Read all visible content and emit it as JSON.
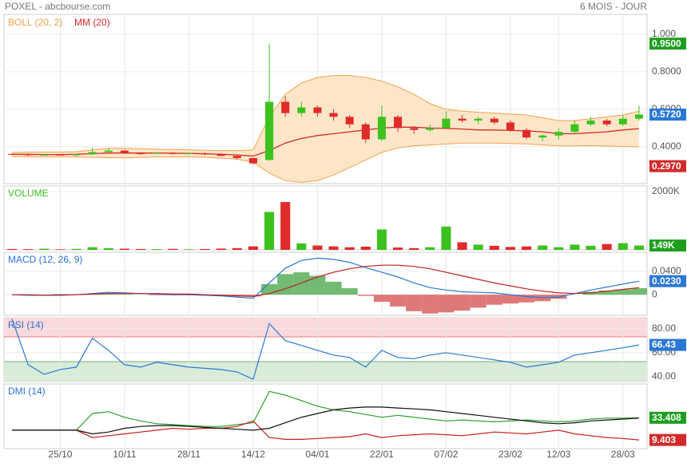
{
  "header": {
    "title": "POXEL - abcbourse.com",
    "period": "6 MOIS - JOUR"
  },
  "chart_data": [
    {
      "type": "candlestick",
      "legend": [
        {
          "name": "BOLL (20, 2)",
          "color": "#f0a24a"
        },
        {
          "name": "MM (20)",
          "color": "#d42a2a"
        }
      ],
      "up_color": "#3cc21e",
      "down_color": "#e02b2b",
      "open": [
        0.362,
        0.36,
        0.356,
        0.358,
        0.355,
        0.36,
        0.372,
        0.38,
        0.366,
        0.364,
        0.368,
        0.362,
        0.366,
        0.36,
        0.352,
        0.34,
        0.33,
        0.64,
        0.58,
        0.61,
        0.58,
        0.56,
        0.52,
        0.44,
        0.56,
        0.5,
        0.49,
        0.5,
        0.55,
        0.54,
        0.55,
        0.53,
        0.49,
        0.45,
        0.46,
        0.48,
        0.52,
        0.54,
        0.52,
        0.55
      ],
      "high": [
        0.366,
        0.364,
        0.362,
        0.362,
        0.364,
        0.396,
        0.392,
        0.384,
        0.372,
        0.37,
        0.372,
        0.37,
        0.37,
        0.364,
        0.356,
        0.342,
        0.95,
        0.67,
        0.64,
        0.62,
        0.6,
        0.57,
        0.53,
        0.62,
        0.57,
        0.51,
        0.52,
        0.59,
        0.57,
        0.56,
        0.56,
        0.54,
        0.5,
        0.47,
        0.5,
        0.54,
        0.56,
        0.55,
        0.57,
        0.62
      ],
      "low": [
        0.356,
        0.352,
        0.352,
        0.354,
        0.35,
        0.356,
        0.366,
        0.362,
        0.358,
        0.36,
        0.36,
        0.358,
        0.356,
        0.35,
        0.334,
        0.306,
        0.326,
        0.56,
        0.56,
        0.56,
        0.54,
        0.5,
        0.42,
        0.43,
        0.48,
        0.47,
        0.48,
        0.5,
        0.53,
        0.52,
        0.52,
        0.48,
        0.44,
        0.43,
        0.44,
        0.47,
        0.51,
        0.51,
        0.51,
        0.54
      ],
      "close": [
        0.36,
        0.356,
        0.358,
        0.355,
        0.36,
        0.372,
        0.38,
        0.366,
        0.364,
        0.368,
        0.362,
        0.366,
        0.36,
        0.352,
        0.34,
        0.312,
        0.64,
        0.58,
        0.61,
        0.58,
        0.56,
        0.52,
        0.44,
        0.56,
        0.5,
        0.49,
        0.5,
        0.55,
        0.54,
        0.55,
        0.53,
        0.49,
        0.45,
        0.46,
        0.48,
        0.52,
        0.54,
        0.52,
        0.55,
        0.572
      ],
      "bollinger": {
        "upper": [
          0.37,
          0.372,
          0.372,
          0.372,
          0.374,
          0.384,
          0.392,
          0.392,
          0.39,
          0.388,
          0.386,
          0.384,
          0.382,
          0.38,
          0.38,
          0.384,
          0.56,
          0.68,
          0.74,
          0.77,
          0.78,
          0.78,
          0.77,
          0.75,
          0.72,
          0.68,
          0.63,
          0.6,
          0.59,
          0.585,
          0.58,
          0.575,
          0.57,
          0.555,
          0.54,
          0.54,
          0.55,
          0.56,
          0.57,
          0.59
        ],
        "lower": [
          0.348,
          0.348,
          0.346,
          0.346,
          0.346,
          0.344,
          0.342,
          0.342,
          0.344,
          0.346,
          0.346,
          0.346,
          0.344,
          0.34,
          0.334,
          0.318,
          0.26,
          0.22,
          0.21,
          0.22,
          0.25,
          0.29,
          0.33,
          0.37,
          0.395,
          0.405,
          0.41,
          0.415,
          0.42,
          0.42,
          0.42,
          0.418,
          0.416,
          0.41,
          0.405,
          0.405,
          0.406,
          0.404,
          0.402,
          0.4
        ],
        "middle": [
          0.36,
          0.36,
          0.359,
          0.359,
          0.36,
          0.364,
          0.367,
          0.367,
          0.367,
          0.367,
          0.366,
          0.365,
          0.363,
          0.36,
          0.357,
          0.351,
          0.38,
          0.42,
          0.445,
          0.46,
          0.47,
          0.48,
          0.49,
          0.5,
          0.505,
          0.505,
          0.5,
          0.498,
          0.495,
          0.49,
          0.49,
          0.488,
          0.485,
          0.48,
          0.47,
          0.47,
          0.475,
          0.48,
          0.49,
          0.497
        ],
        "band_fill": "#fde6c8"
      },
      "ylim": [
        0.204,
        1.106
      ],
      "yticks": [
        {
          "value": 1.0,
          "label": "1.000"
        },
        {
          "value": 0.8,
          "label": "0.8000"
        },
        {
          "value": 0.6,
          "label": "0.6000"
        },
        {
          "value": 0.4,
          "label": "0.4000"
        }
      ],
      "badges": [
        {
          "value": 0.95,
          "label": "0.9500",
          "color": "#1e9e1e",
          "text_color": "#ffffff"
        },
        {
          "value": 0.572,
          "label": "0.5720",
          "color": "#2a78d6",
          "text_color": "#ffffff"
        },
        {
          "value": 0.297,
          "label": "0.2970",
          "color": "#d42a2a",
          "text_color": "#ffffff"
        }
      ]
    },
    {
      "type": "bar",
      "title": "VOLUME",
      "title_color": "#3cc21e",
      "values": [
        30000,
        25000,
        40000,
        20000,
        35000,
        90000,
        60000,
        40000,
        30000,
        25000,
        35000,
        20000,
        30000,
        45000,
        60000,
        120000,
        1300000,
        1640000,
        220000,
        150000,
        120000,
        90000,
        110000,
        700000,
        80000,
        60000,
        90000,
        800000,
        260000,
        180000,
        140000,
        100000,
        120000,
        150000,
        90000,
        180000,
        140000,
        200000,
        230000,
        149000
      ],
      "ylim": [
        0,
        2190000
      ],
      "yticks": [
        {
          "value": 2000000,
          "label": "2000K"
        }
      ],
      "badges": [
        {
          "value": 149000,
          "label": "149K",
          "color": "#1e9e1e",
          "text_color": "#ffffff"
        }
      ]
    },
    {
      "type": "macd",
      "title": "MACD (12, 26, 9)",
      "title_color": "#2a6fd6",
      "series": [
        {
          "color": "#2a78d6",
          "values": [
            0.0,
            -0.001,
            -0.001,
            0.0,
            0.0,
            0.002,
            0.004,
            0.003,
            0.002,
            0.001,
            0.0,
            0.0,
            -0.001,
            -0.002,
            -0.004,
            -0.006,
            0.02,
            0.045,
            0.058,
            0.062,
            0.06,
            0.055,
            0.046,
            0.038,
            0.03,
            0.02,
            0.012,
            0.008,
            0.005,
            0.004,
            0.003,
            0.0,
            -0.003,
            -0.005,
            -0.004,
            0.002,
            0.008,
            0.013,
            0.018,
            0.023
          ]
        },
        {
          "color": "#c02020",
          "values": [
            0.0,
            0.0,
            -0.001,
            -0.001,
            0.0,
            0.001,
            0.002,
            0.002,
            0.002,
            0.002,
            0.001,
            0.001,
            0.0,
            -0.001,
            -0.002,
            -0.003,
            0.002,
            0.01,
            0.02,
            0.03,
            0.038,
            0.044,
            0.048,
            0.05,
            0.05,
            0.048,
            0.044,
            0.038,
            0.032,
            0.026,
            0.02,
            0.015,
            0.01,
            0.006,
            0.003,
            0.002,
            0.003,
            0.006,
            0.009,
            0.012
          ]
        }
      ],
      "histogram": {
        "up_color": "#5aae5a",
        "down_color": "#d96060",
        "values": [
          0.0,
          -0.001,
          0.0,
          0.001,
          0.0,
          0.001,
          0.002,
          0.001,
          0.0,
          -0.001,
          -0.001,
          -0.001,
          -0.001,
          -0.001,
          -0.002,
          -0.003,
          0.018,
          0.035,
          0.038,
          0.032,
          0.022,
          0.011,
          -0.002,
          -0.012,
          -0.02,
          -0.028,
          -0.032,
          -0.03,
          -0.027,
          -0.022,
          -0.017,
          -0.015,
          -0.013,
          -0.011,
          -0.007,
          0.0,
          0.005,
          0.007,
          0.009,
          0.011
        ]
      },
      "ylim": [
        -0.035,
        0.072
      ],
      "yticks": [
        {
          "value": 0.04,
          "label": "0.0400"
        },
        0
      ],
      "badges": [
        {
          "value": 0.023,
          "label": "0.0230",
          "color": "#2a78d6",
          "text_color": "#ffffff"
        }
      ]
    },
    {
      "type": "line",
      "title": "RSI (14)",
      "title_color": "#2a6fd6",
      "series": [
        {
          "color": "#2a78d6",
          "values": [
            88,
            50,
            42,
            46,
            48,
            72,
            62,
            50,
            48,
            52,
            50,
            48,
            47,
            46,
            44,
            38,
            84,
            70,
            66,
            62,
            58,
            56,
            48,
            62,
            56,
            55,
            58,
            60,
            58,
            56,
            54,
            52,
            48,
            50,
            52,
            58,
            60,
            62,
            64,
            66.43
          ]
        }
      ],
      "ylim": [
        36,
        89
      ],
      "yticks": [
        {
          "value": 80,
          "label": "80.00"
        },
        {
          "value": 60,
          "label": "60.00"
        },
        {
          "value": 40,
          "label": "40.00"
        }
      ],
      "badges": [
        {
          "value": 66.43,
          "color": "#2a78d6",
          "text_color": "#ffffff"
        }
      ]
    },
    {
      "type": "line",
      "title": "DMI (14)",
      "title_color": "#2a6fd6",
      "categories": [
        null,
        null,
        null,
        "25/10",
        null,
        null,
        null,
        "10/11",
        null,
        null,
        null,
        "28/11",
        null,
        null,
        null,
        "14/12",
        null,
        null,
        null,
        "04/01",
        null,
        null,
        null,
        "22/01",
        null,
        null,
        null,
        "07/02",
        null,
        null,
        null,
        "23/02",
        null,
        null,
        "12/03",
        null,
        null,
        null,
        "28/03",
        null
      ],
      "series": [
        {
          "color": "#2aa02a",
          "values": [
            20,
            20,
            20,
            20,
            20,
            38,
            40,
            34,
            30,
            27,
            26,
            25,
            24,
            24,
            26,
            28,
            62,
            58,
            52,
            46,
            42,
            40,
            37,
            34,
            36,
            34,
            32,
            30,
            31,
            30,
            29,
            30,
            31,
            30,
            29,
            30,
            32,
            33,
            33,
            33.408
          ]
        },
        {
          "color": "#c82020",
          "values": [
            20,
            20,
            20,
            20,
            20,
            12,
            14,
            16,
            18,
            20,
            22,
            21,
            22,
            22,
            24,
            30,
            12,
            10,
            10,
            11,
            12,
            13,
            16,
            12,
            14,
            15,
            16,
            15,
            14,
            16,
            18,
            17,
            16,
            18,
            20,
            16,
            14,
            12,
            11,
            9.403
          ]
        },
        {
          "color": "#111111",
          "values": [
            20,
            20,
            20,
            20,
            20,
            16,
            18,
            22,
            24,
            25,
            25,
            24,
            23,
            22,
            21,
            20,
            22,
            28,
            34,
            38,
            42,
            44,
            45,
            45,
            44,
            43,
            42,
            40,
            38,
            36,
            34,
            32,
            30,
            28,
            27,
            28,
            30,
            31,
            32,
            33
          ]
        }
      ],
      "ylim": [
        0,
        70
      ],
      "badges": [
        {
          "value": 33.408,
          "color": "#1e9e1e",
          "text_color": "#ffffff"
        },
        {
          "value": 9.403,
          "color": "#d42a2a",
          "text_color": "#ffffff"
        }
      ]
    }
  ]
}
